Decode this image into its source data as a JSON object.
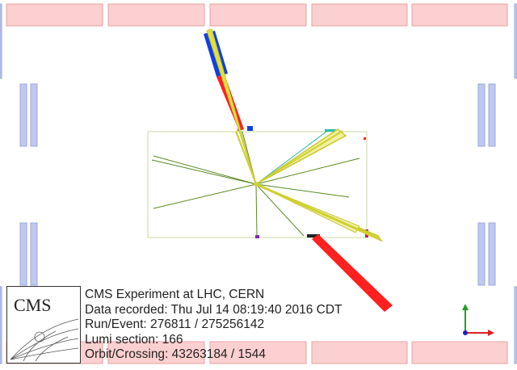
{
  "logo": {
    "text": "CMS"
  },
  "event_info": {
    "experiment": "CMS Experiment at LHC, CERN",
    "recorded": "Data recorded: Thu Jul 14 08:19:40 2016 CDT",
    "run_event": "Run/Event: 276811 / 275256142",
    "lumi": "Lumi section: 166",
    "orbit": "Orbit/Crossing: 43263184 / 1544"
  },
  "colors": {
    "calo_block_fill": "#fcd0d0",
    "calo_block_stroke": "#e8a0a0",
    "muon_chamber_fill": "#c0c8f0",
    "muon_chamber_stroke": "#9aa8e0",
    "tracker_outline": "#c8d8a0",
    "track": "#5a8a20",
    "jet": "#e0e040",
    "ecal_deposit": "#ff2020",
    "hcal_deposit": "#1040e0",
    "axis_y": "#20a020",
    "axis_x": "#e02020",
    "axis_origin": "#2020c0"
  },
  "icons": {
    "axes": "xyz-axes-icon"
  }
}
